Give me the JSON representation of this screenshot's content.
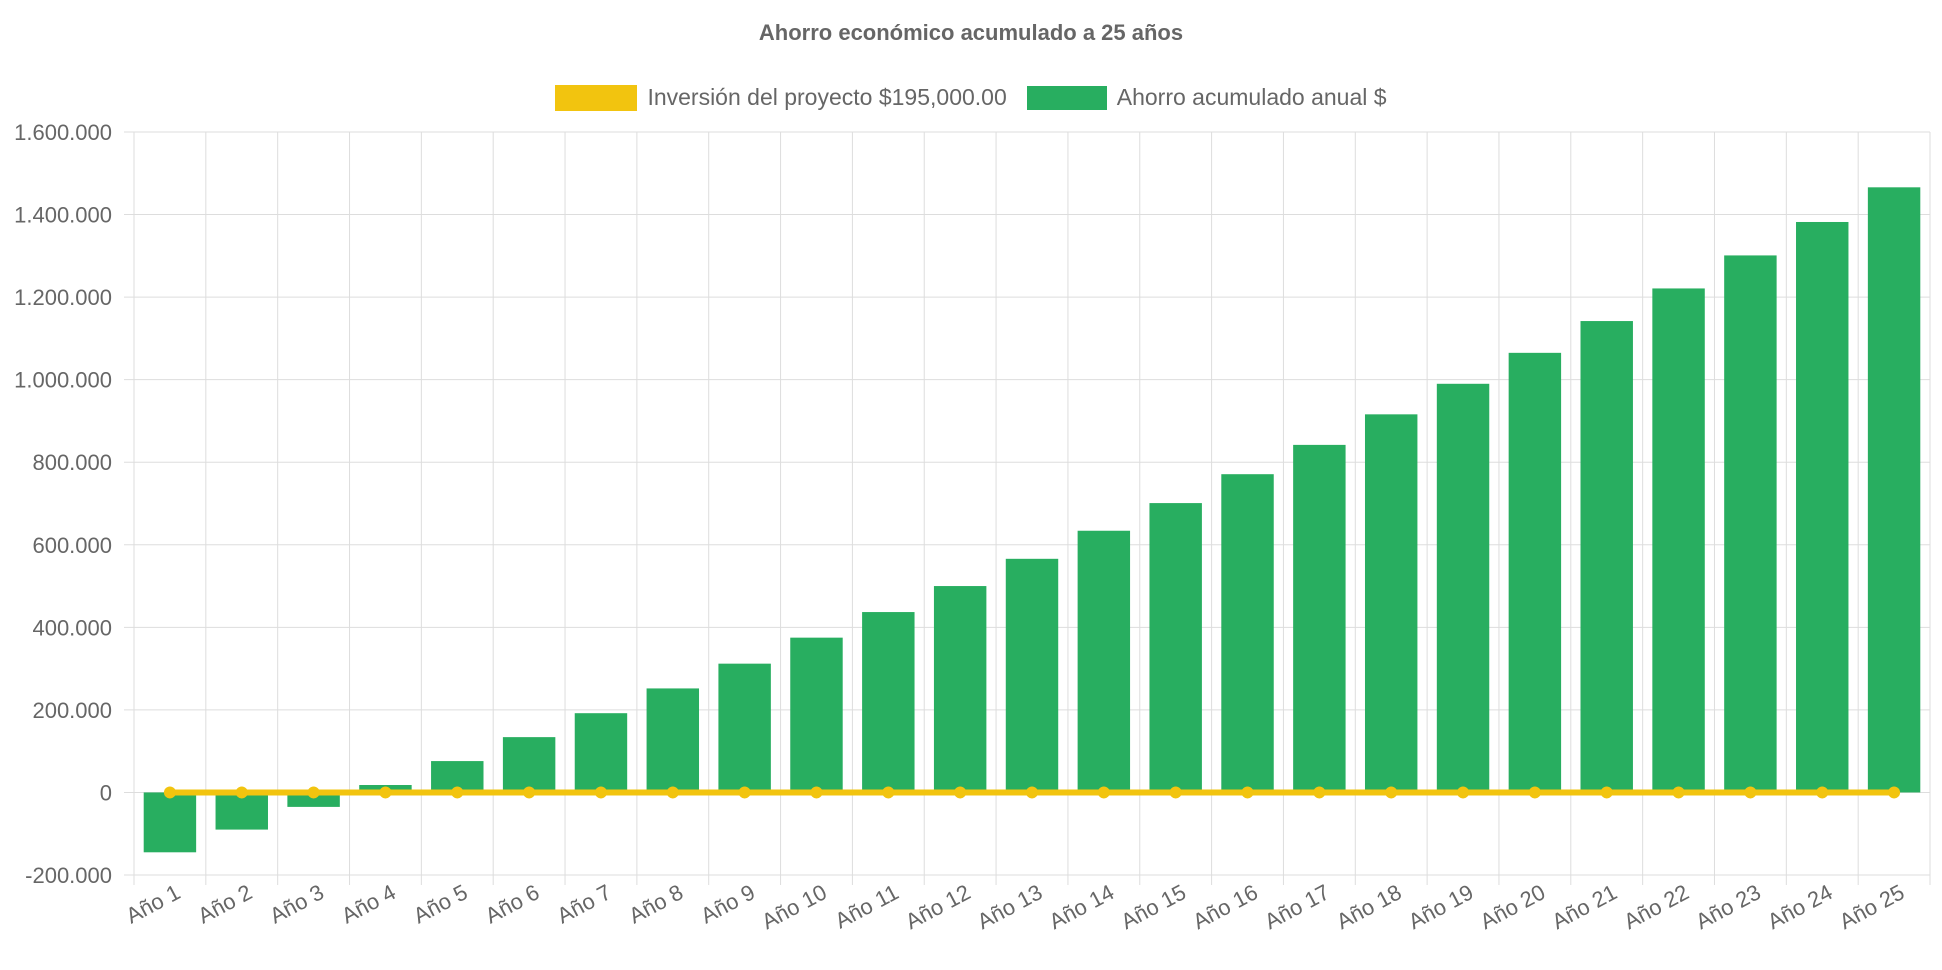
{
  "chart_data": {
    "type": "bar",
    "title": "Ahorro económico acumulado a 25 años",
    "categories": [
      "Año 1",
      "Año 2",
      "Año 3",
      "Año 4",
      "Año 5",
      "Año 6",
      "Año 7",
      "Año 8",
      "Año 9",
      "Año 10",
      "Año 11",
      "Año 12",
      "Año 13",
      "Año 14",
      "Año 15",
      "Año 16",
      "Año 17",
      "Año 18",
      "Año 19",
      "Año 20",
      "Año 21",
      "Año 22",
      "Año 23",
      "Año 24",
      "Año 25"
    ],
    "series": [
      {
        "name": "Inversión del proyecto $195,000.00",
        "type": "line",
        "color": "#f2c40f",
        "values": [
          0,
          0,
          0,
          0,
          0,
          0,
          0,
          0,
          0,
          0,
          0,
          0,
          0,
          0,
          0,
          0,
          0,
          0,
          0,
          0,
          0,
          0,
          0,
          0,
          0
        ]
      },
      {
        "name": "Ahorro acumulado anual $",
        "type": "bar",
        "color": "#28ae60",
        "values": [
          -145000,
          -90000,
          -35000,
          18000,
          76000,
          134000,
          192000,
          252000,
          312000,
          375000,
          437000,
          500000,
          566000,
          634000,
          701000,
          771000,
          842000,
          916000,
          990000,
          1065000,
          1142000,
          1221000,
          1301000,
          1382000,
          1466000
        ]
      }
    ],
    "xlabel": "",
    "ylabel": "",
    "ylim": [
      -200000,
      1600000
    ],
    "yticks": [
      -200000,
      0,
      200000,
      400000,
      600000,
      800000,
      1000000,
      1200000,
      1400000,
      1600000
    ],
    "ytick_labels": [
      "-200.000",
      "0",
      "200.000",
      "400.000",
      "600.000",
      "800.000",
      "1.000.000",
      "1.200.000",
      "1.400.000",
      "1.600.000"
    ],
    "grid": true,
    "legend_position": "top"
  }
}
